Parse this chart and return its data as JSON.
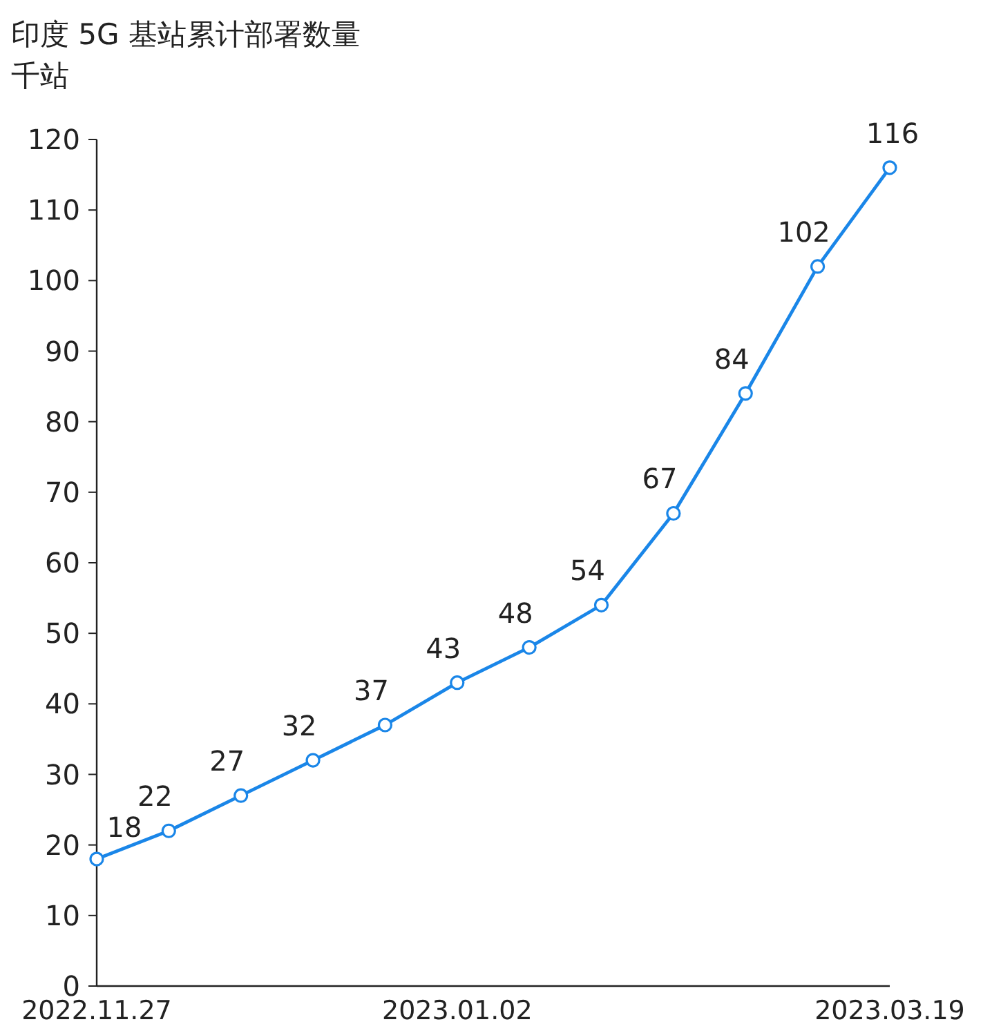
{
  "chart_data": {
    "type": "line",
    "title": "印度 5G 基站累计部署数量",
    "ylabel": "千站",
    "categories": [
      "2022.11.27",
      null,
      null,
      null,
      null,
      "2023.01.02",
      null,
      null,
      null,
      null,
      null,
      "2023.03.19"
    ],
    "series": [
      {
        "color": "#1a86e8",
        "values": [
          18,
          22,
          27,
          32,
          37,
          43,
          48,
          54,
          67,
          84,
          102,
          116
        ]
      }
    ],
    "ylim": [
      0,
      120
    ],
    "yticks": [
      0,
      10,
      20,
      30,
      40,
      50,
      60,
      70,
      80,
      90,
      100,
      110,
      120
    ],
    "grid": false,
    "marker": "circle",
    "line_style": "solid",
    "data_labels": true
  }
}
